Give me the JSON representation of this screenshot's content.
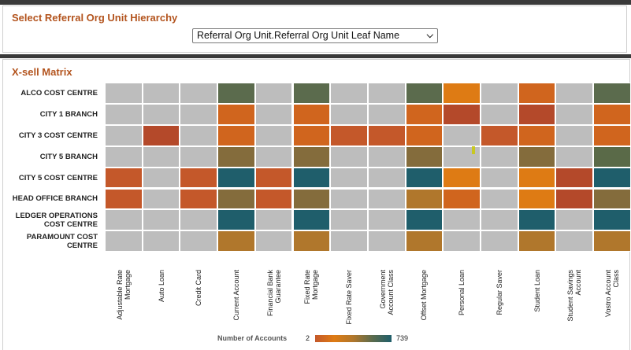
{
  "panel1": {
    "title": "Select Referral Org Unit Hierarchy",
    "select_value": "Referral Org Unit.Referral Org Unit Leaf Name"
  },
  "panel2": {
    "title": "X-sell Matrix"
  },
  "matrix": {
    "rows": [
      "ALCO COST CENTRE",
      "CITY 1 BRANCH",
      "CITY 3 COST CENTRE",
      "CITY 5 BRANCH",
      "CITY 5 COST CENTRE",
      "HEAD OFFICE BRANCH",
      "LEDGER OPERATIONS COST CENTRE",
      "PARAMOUNT COST CENTRE"
    ],
    "columns": [
      "Adjustable Rate Mortgage",
      "Auto Loan",
      "Credit Card",
      "Current Account",
      "Financial Bank Guarantee",
      "Fixed Rate Mortgage",
      "Fixed Rate Saver",
      "Government Account Class",
      "Offset Mortgage",
      "Personal Loan",
      "Regular Saver",
      "Student Loan",
      "Student Savings Account",
      "Vostro Account Class"
    ],
    "colors": {
      "empty": "#bdbdbd",
      "olive_dark": "#5b6b4d",
      "orange_bright": "#de7b14",
      "orange": "#d0651e",
      "orange_red": "#c4582a",
      "rust": "#b4492a",
      "brown_olive": "#846c3c",
      "teal": "#1f5e6b",
      "gold": "#b0772c",
      "olive_green": "#5a6a48"
    },
    "cells": [
      [
        "empty",
        "empty",
        "empty",
        "olive_dark",
        "empty",
        "olive_dark",
        "empty",
        "empty",
        "olive_dark",
        "orange_bright",
        "empty",
        "orange",
        "empty",
        "olive_dark"
      ],
      [
        "empty",
        "empty",
        "empty",
        "orange",
        "empty",
        "orange",
        "empty",
        "empty",
        "orange",
        "rust",
        "empty",
        "rust",
        "empty",
        "orange"
      ],
      [
        "empty",
        "rust",
        "empty",
        "orange",
        "empty",
        "orange",
        "orange_red",
        "orange_red",
        "orange",
        "empty",
        "orange_red",
        "orange",
        "empty",
        "orange"
      ],
      [
        "empty",
        "empty",
        "empty",
        "brown_olive",
        "empty",
        "brown_olive",
        "empty",
        "empty",
        "brown_olive",
        "empty",
        "empty",
        "brown_olive",
        "empty",
        "olive_green"
      ],
      [
        "orange_red",
        "empty",
        "orange_red",
        "teal",
        "orange_red",
        "teal",
        "empty",
        "empty",
        "teal",
        "orange_bright",
        "empty",
        "orange_bright",
        "rust",
        "teal"
      ],
      [
        "orange_red",
        "empty",
        "orange_red",
        "brown_olive",
        "orange_red",
        "brown_olive",
        "empty",
        "empty",
        "gold",
        "orange",
        "empty",
        "orange_bright",
        "rust",
        "brown_olive"
      ],
      [
        "empty",
        "empty",
        "empty",
        "teal",
        "empty",
        "teal",
        "empty",
        "empty",
        "teal",
        "empty",
        "empty",
        "teal",
        "empty",
        "teal"
      ],
      [
        "empty",
        "empty",
        "empty",
        "gold",
        "empty",
        "gold",
        "empty",
        "empty",
        "gold",
        "empty",
        "empty",
        "gold",
        "empty",
        "gold"
      ]
    ]
  },
  "legend": {
    "title": "Number of Accounts",
    "min": "2",
    "max": "739",
    "gradient": [
      "#c4582a",
      "#de7b14",
      "#b0772c",
      "#5b6b4d",
      "#1f5e6b"
    ]
  }
}
